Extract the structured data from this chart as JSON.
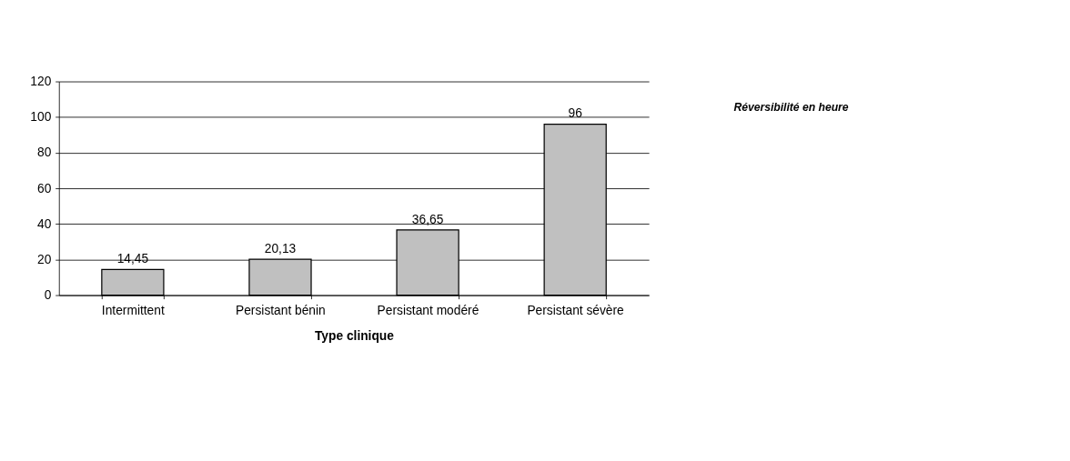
{
  "chart_data": {
    "type": "bar",
    "xlabel": "Type clinique",
    "legend_title": "Réversibilité en heure",
    "categories": [
      "Intermittent",
      "Persistant bénin",
      "Persistant modéré",
      "Persistant sévère"
    ],
    "values": [
      14.45,
      20.13,
      36.65,
      96
    ],
    "value_labels": [
      "14,45",
      "20,13",
      "36,65",
      "96"
    ],
    "color": "#c0c0c0",
    "ylim": [
      0,
      120
    ],
    "yticks": [
      0,
      20,
      40,
      60,
      80,
      100,
      120
    ],
    "grid": "y"
  }
}
